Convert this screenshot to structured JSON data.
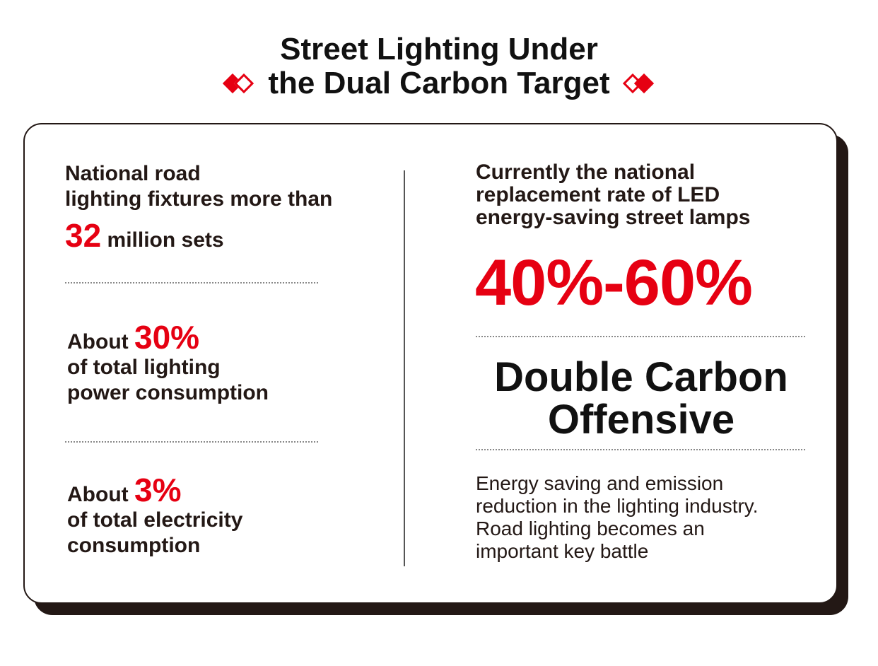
{
  "title": {
    "line1": "Street Lighting Under",
    "line2": "the Dual Carbon Target"
  },
  "left": {
    "stat1": {
      "line1": "National road",
      "line2": "lighting fixtures more than",
      "number": "32",
      "unit": "million sets"
    },
    "stat2": {
      "prefix": "About",
      "number": "30%",
      "line2": "of total lighting",
      "line3": "power consumption"
    },
    "stat3": {
      "prefix": "About",
      "number": "3%",
      "line2": "of total electricity",
      "line3": "consumption"
    }
  },
  "right": {
    "rate_caption": {
      "line1": "Currently the national",
      "line2": "replacement rate of LED",
      "line3": "energy-saving street lamps"
    },
    "rate_value": "40%-60%",
    "headline": {
      "line1": "Double Carbon",
      "line2": "Offensive"
    },
    "description": {
      "line1": "Energy saving and emission",
      "line2": "reduction in the lighting industry.",
      "line3": "Road lighting becomes an",
      "line4": "important key battle"
    }
  },
  "colors": {
    "accent": "#e60012",
    "text": "#231815",
    "shadow": "#231815"
  }
}
